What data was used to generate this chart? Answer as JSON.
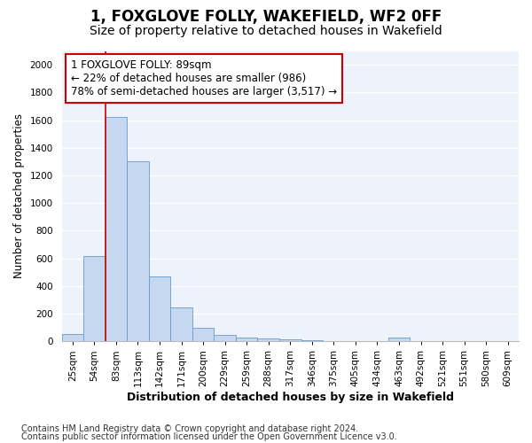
{
  "title": "1, FOXGLOVE FOLLY, WAKEFIELD, WF2 0FF",
  "subtitle": "Size of property relative to detached houses in Wakefield",
  "xlabel": "Distribution of detached houses by size in Wakefield",
  "ylabel": "Number of detached properties",
  "footnote1": "Contains HM Land Registry data © Crown copyright and database right 2024.",
  "footnote2": "Contains public sector information licensed under the Open Government Licence v3.0.",
  "categories": [
    "25sqm",
    "54sqm",
    "83sqm",
    "113sqm",
    "142sqm",
    "171sqm",
    "200sqm",
    "229sqm",
    "259sqm",
    "288sqm",
    "317sqm",
    "346sqm",
    "375sqm",
    "405sqm",
    "434sqm",
    "463sqm",
    "492sqm",
    "521sqm",
    "551sqm",
    "580sqm",
    "609sqm"
  ],
  "values": [
    50,
    620,
    1620,
    1300,
    470,
    245,
    100,
    45,
    30,
    20,
    15,
    8,
    0,
    0,
    0,
    30,
    0,
    0,
    0,
    0,
    0
  ],
  "bar_color": "#c5d8f0",
  "bar_edge_color": "#6699cc",
  "annotation_box_color": "#cc0000",
  "property_line_color": "#cc0000",
  "property_bin_index": 2,
  "annotation_text": "1 FOXGLOVE FOLLY: 89sqm\n← 22% of detached houses are smaller (986)\n78% of semi-detached houses are larger (3,517) →",
  "ylim": [
    0,
    2100
  ],
  "yticks": [
    0,
    200,
    400,
    600,
    800,
    1000,
    1200,
    1400,
    1600,
    1800,
    2000
  ],
  "background_color": "#eef2fa",
  "grid_color": "#ffffff",
  "title_fontsize": 12,
  "subtitle_fontsize": 10,
  "xlabel_fontsize": 9,
  "ylabel_fontsize": 8.5,
  "tick_fontsize": 7.5,
  "annotation_fontsize": 8.5,
  "footnote_fontsize": 7
}
